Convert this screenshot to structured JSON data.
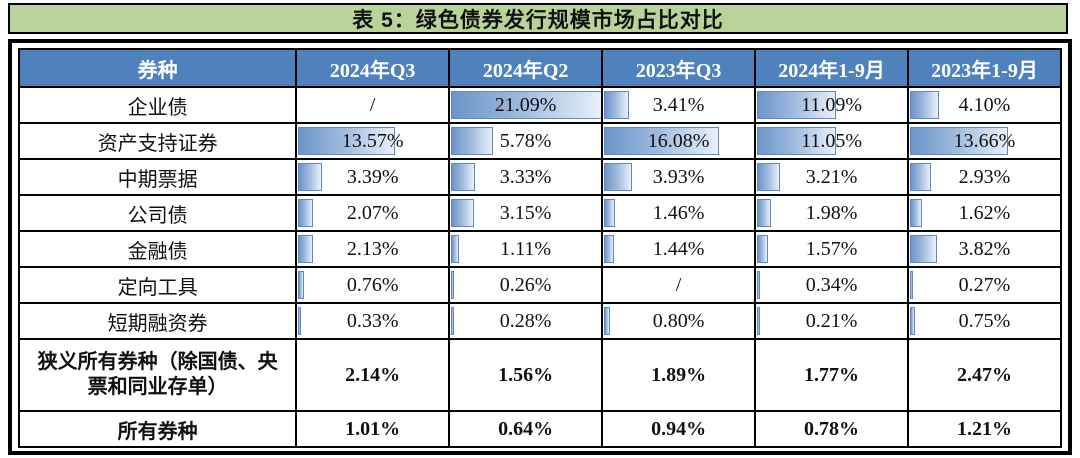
{
  "title_bar": {
    "text": "表 5：绿色债券发行规模市场占比对比"
  },
  "colors": {
    "title_bg": "#b9d39b",
    "header_bg": "#4f81bd",
    "header_text": "#ffffff",
    "bar_fill_left": "#6b95c9",
    "bar_fill_right": "#e9f0f9",
    "bar_border": "#5d89c0",
    "grid": "#000000"
  },
  "chart_data": {
    "type": "table",
    "title": "表 5：绿色债券发行规模市场占比对比",
    "note": "cells contain gradient data bars scaled to bar_scale_max",
    "bar_scale_max": 21.09,
    "columns": [
      "券种",
      "2024年Q3",
      "2024年Q2",
      "2023年Q3",
      "2024年1-9月",
      "2023年1-9月"
    ],
    "rows": [
      {
        "label": "企业债",
        "bold": false,
        "bars": true,
        "cells": [
          {
            "text": "/",
            "bar": null
          },
          {
            "text": "21.09%",
            "bar": 21.09
          },
          {
            "text": "3.41%",
            "bar": 3.41
          },
          {
            "text": "11.09%",
            "bar": 11.09
          },
          {
            "text": "4.10%",
            "bar": 4.1
          }
        ]
      },
      {
        "label": "资产支持证券",
        "bold": false,
        "bars": true,
        "cells": [
          {
            "text": "13.57%",
            "bar": 13.57
          },
          {
            "text": "5.78%",
            "bar": 5.78
          },
          {
            "text": "16.08%",
            "bar": 16.08
          },
          {
            "text": "11.05%",
            "bar": 11.05
          },
          {
            "text": "13.66%",
            "bar": 13.66
          }
        ]
      },
      {
        "label": "中期票据",
        "bold": false,
        "bars": true,
        "cells": [
          {
            "text": "3.39%",
            "bar": 3.39
          },
          {
            "text": "3.33%",
            "bar": 3.33
          },
          {
            "text": "3.93%",
            "bar": 3.93
          },
          {
            "text": "3.21%",
            "bar": 3.21
          },
          {
            "text": "2.93%",
            "bar": 2.93
          }
        ]
      },
      {
        "label": "公司债",
        "bold": false,
        "bars": true,
        "cells": [
          {
            "text": "2.07%",
            "bar": 2.07
          },
          {
            "text": "3.15%",
            "bar": 3.15
          },
          {
            "text": "1.46%",
            "bar": 1.46
          },
          {
            "text": "1.98%",
            "bar": 1.98
          },
          {
            "text": "1.62%",
            "bar": 1.62
          }
        ]
      },
      {
        "label": "金融债",
        "bold": false,
        "bars": true,
        "cells": [
          {
            "text": "2.13%",
            "bar": 2.13
          },
          {
            "text": "1.11%",
            "bar": 1.11
          },
          {
            "text": "1.44%",
            "bar": 1.44
          },
          {
            "text": "1.57%",
            "bar": 1.57
          },
          {
            "text": "3.82%",
            "bar": 3.82
          }
        ]
      },
      {
        "label": "定向工具",
        "bold": false,
        "bars": true,
        "cells": [
          {
            "text": "0.76%",
            "bar": 0.76
          },
          {
            "text": "0.26%",
            "bar": 0.26
          },
          {
            "text": "/",
            "bar": null
          },
          {
            "text": "0.34%",
            "bar": 0.34
          },
          {
            "text": "0.27%",
            "bar": 0.27
          }
        ]
      },
      {
        "label": "短期融资券",
        "bold": false,
        "bars": true,
        "cells": [
          {
            "text": "0.33%",
            "bar": 0.33
          },
          {
            "text": "0.28%",
            "bar": 0.28
          },
          {
            "text": "0.80%",
            "bar": 0.8
          },
          {
            "text": "0.21%",
            "bar": 0.21
          },
          {
            "text": "0.75%",
            "bar": 0.75
          }
        ]
      },
      {
        "label": "狭义所有券种（除国债、央票和同业存单）",
        "bold": true,
        "tall": true,
        "bars": false,
        "cells": [
          {
            "text": "2.14%",
            "bar": null
          },
          {
            "text": "1.56%",
            "bar": null
          },
          {
            "text": "1.89%",
            "bar": null
          },
          {
            "text": "1.77%",
            "bar": null
          },
          {
            "text": "2.47%",
            "bar": null
          }
        ]
      },
      {
        "label": "所有券种",
        "bold": true,
        "bars": false,
        "cells": [
          {
            "text": "1.01%",
            "bar": null
          },
          {
            "text": "0.64%",
            "bar": null
          },
          {
            "text": "0.94%",
            "bar": null
          },
          {
            "text": "0.78%",
            "bar": null
          },
          {
            "text": "1.21%",
            "bar": null
          }
        ]
      }
    ]
  }
}
